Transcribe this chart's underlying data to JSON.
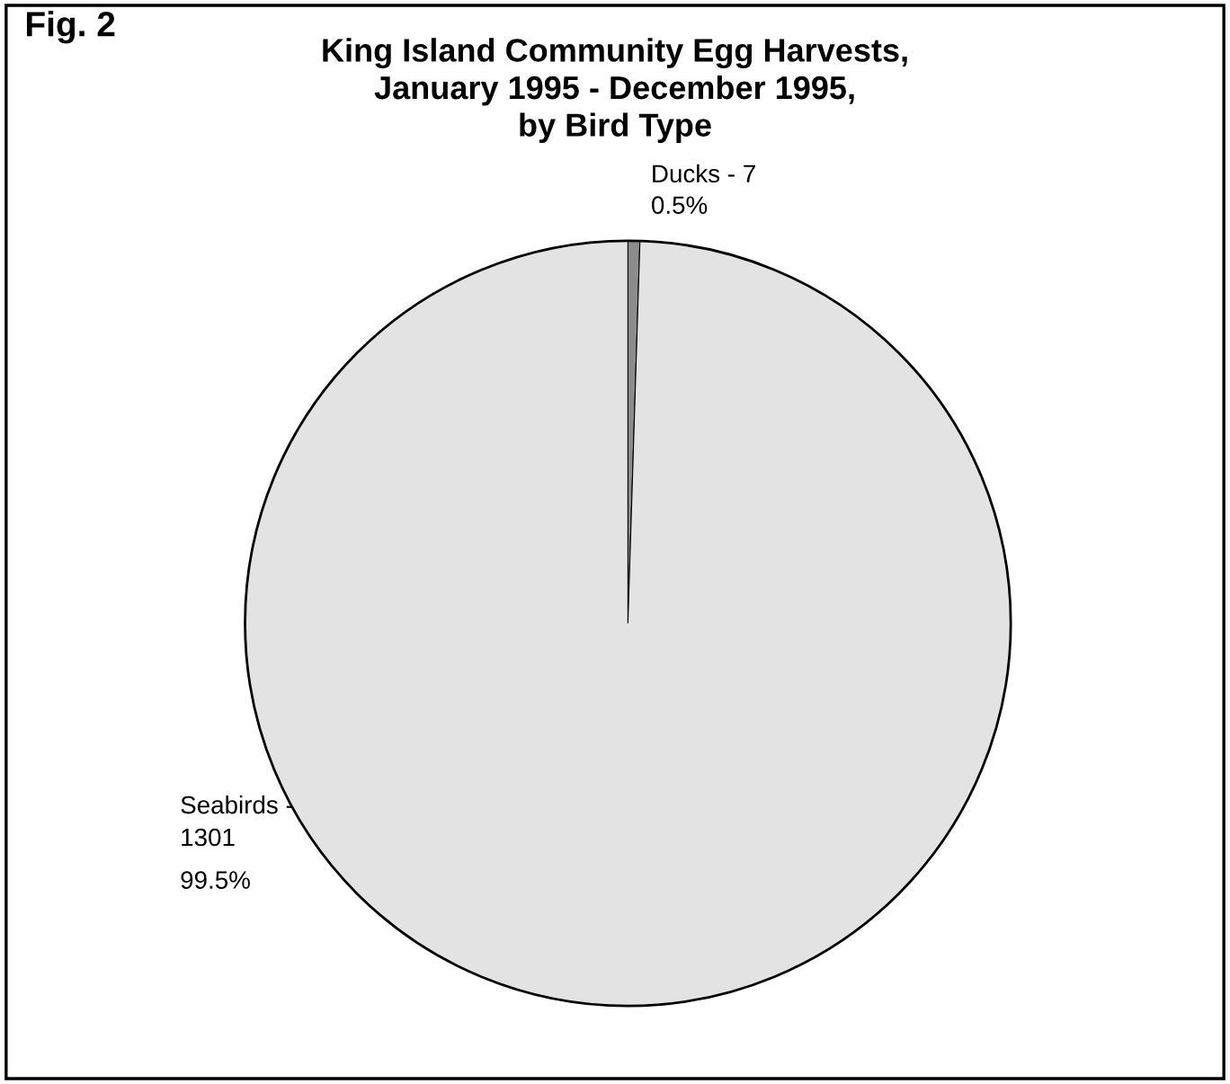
{
  "chart_data": {
    "type": "pie",
    "title": "King Island Community Egg Harvests,\nJanuary 1995 - December 1995,\nby Bird Type",
    "annotations": [
      "Fig. 2"
    ],
    "categories": [
      "Ducks - 7",
      "Seabirds -\n1301"
    ],
    "values": [
      0.5,
      99.5
    ],
    "colors": [
      "#8c8c8c",
      "#e3e3e3"
    ],
    "value_labels": [
      "0.5%",
      "99.5%"
    ],
    "legend": false
  }
}
